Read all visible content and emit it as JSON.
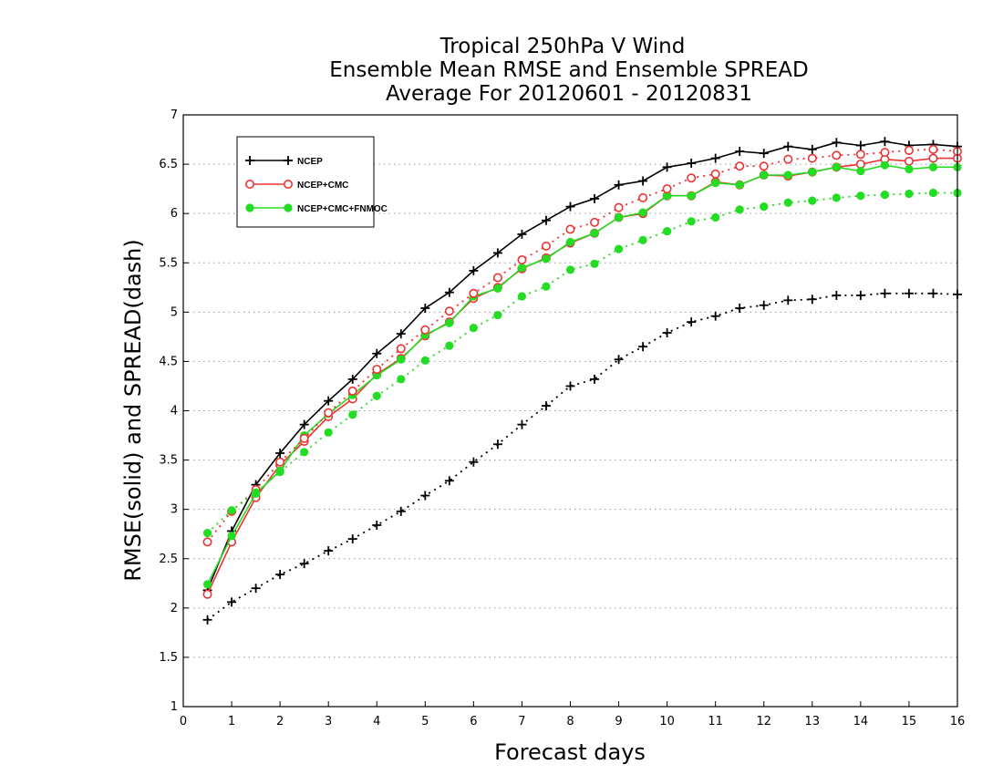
{
  "chart_data": {
    "type": "line",
    "title": [
      "Tropical 250hPa V Wind",
      "Ensemble Mean RMSE and Ensemble SPREAD",
      "Average For 20120601 - 20120831"
    ],
    "xlabel": "Forecast days",
    "ylabel": "RMSE(solid) and SPREAD(dash)",
    "xlim": [
      0,
      16
    ],
    "ylim": [
      1,
      7
    ],
    "xticks": [
      "0",
      "1",
      "2",
      "3",
      "4",
      "5",
      "6",
      "7",
      "8",
      "9",
      "10",
      "11",
      "12",
      "13",
      "14",
      "15",
      "16"
    ],
    "yticks": [
      "1",
      "1.5",
      "2",
      "2.5",
      "3",
      "3.5",
      "4",
      "4.5",
      "5",
      "5.5",
      "6",
      "6.5",
      "7"
    ],
    "grid": "horizontal dotted",
    "legend": "top-left",
    "x": [
      0.5,
      1,
      1.5,
      2,
      2.5,
      3,
      3.5,
      4,
      4.5,
      5,
      5.5,
      6,
      6.5,
      7,
      7.5,
      8,
      8.5,
      9,
      9.5,
      10,
      10.5,
      11,
      11.5,
      12,
      12.5,
      13,
      13.5,
      14,
      14.5,
      15,
      15.5,
      16
    ],
    "series": [
      {
        "name": "NCEP",
        "style": "solid",
        "color": "#000000",
        "marker": "plus",
        "values": [
          2.18,
          2.78,
          3.25,
          3.57,
          3.86,
          4.1,
          4.32,
          4.58,
          4.78,
          5.04,
          5.2,
          5.42,
          5.6,
          5.79,
          5.93,
          6.07,
          6.15,
          6.29,
          6.33,
          6.47,
          6.51,
          6.56,
          6.63,
          6.61,
          6.68,
          6.65,
          6.72,
          6.69,
          6.73,
          6.69,
          6.7,
          6.68
        ]
      },
      {
        "name": "NCEP+CMC",
        "style": "solid",
        "color": "#ee3333",
        "marker": "open-circle",
        "values": [
          2.14,
          2.67,
          3.12,
          3.45,
          3.69,
          3.94,
          4.12,
          4.37,
          4.53,
          4.76,
          4.9,
          5.14,
          5.25,
          5.44,
          5.55,
          5.7,
          5.8,
          5.96,
          6.0,
          6.18,
          6.18,
          6.32,
          6.29,
          6.39,
          6.38,
          6.42,
          6.47,
          6.5,
          6.55,
          6.53,
          6.56,
          6.56
        ]
      },
      {
        "name": "NCEP+CMC+FNMOC",
        "style": "solid",
        "color": "#22dd22",
        "marker": "filled-circle",
        "values": [
          2.24,
          2.73,
          3.16,
          3.39,
          3.75,
          3.97,
          4.16,
          4.36,
          4.52,
          4.77,
          4.89,
          5.16,
          5.24,
          5.45,
          5.54,
          5.71,
          5.8,
          5.96,
          6.01,
          6.18,
          6.18,
          6.31,
          6.29,
          6.39,
          6.39,
          6.42,
          6.47,
          6.43,
          6.49,
          6.45,
          6.47,
          6.47
        ]
      },
      {
        "name": "",
        "style": "dotted",
        "color": "#000000",
        "marker": "plus",
        "values": [
          1.88,
          2.06,
          2.2,
          2.34,
          2.45,
          2.58,
          2.7,
          2.84,
          2.98,
          3.14,
          3.29,
          3.48,
          3.66,
          3.86,
          4.05,
          4.25,
          4.32,
          4.52,
          4.65,
          4.79,
          4.9,
          4.96,
          5.04,
          5.07,
          5.12,
          5.13,
          5.17,
          5.17,
          5.19,
          5.19,
          5.19,
          5.18
        ]
      },
      {
        "name": "",
        "style": "dotted",
        "color": "#ee3333",
        "marker": "open-circle",
        "values": [
          2.67,
          2.98,
          3.2,
          3.48,
          3.72,
          3.98,
          4.2,
          4.42,
          4.63,
          4.82,
          5.01,
          5.19,
          5.35,
          5.53,
          5.67,
          5.84,
          5.91,
          6.06,
          6.16,
          6.25,
          6.36,
          6.4,
          6.48,
          6.48,
          6.55,
          6.56,
          6.59,
          6.6,
          6.62,
          6.64,
          6.65,
          6.63
        ]
      },
      {
        "name": "",
        "style": "dotted",
        "color": "#22dd22",
        "marker": "filled-circle",
        "values": [
          2.76,
          2.99,
          3.17,
          3.38,
          3.58,
          3.78,
          3.96,
          4.15,
          4.32,
          4.51,
          4.66,
          4.84,
          4.97,
          5.16,
          5.26,
          5.43,
          5.49,
          5.64,
          5.73,
          5.82,
          5.92,
          5.96,
          6.04,
          6.07,
          6.11,
          6.13,
          6.16,
          6.18,
          6.19,
          6.2,
          6.21,
          6.21
        ]
      }
    ]
  }
}
